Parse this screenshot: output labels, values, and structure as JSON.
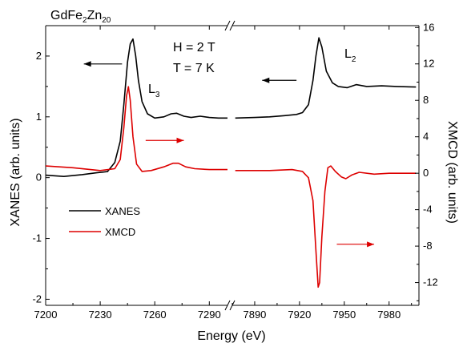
{
  "chart_data": {
    "type": "line",
    "title": "GdFe2Zn20",
    "title_parts": {
      "base1": "GdFe",
      "sub1": "2",
      "base2": "Zn",
      "sub2": "20"
    },
    "xlabel": "Energy (eV)",
    "ylabel_left": "XANES (arb. units)",
    "ylabel_right": "XMCD (arb. units)",
    "x_axis_broken": true,
    "x_segments": [
      {
        "xlim": [
          7200,
          7300
        ],
        "ticks": [
          7200,
          7230,
          7260,
          7290
        ]
      },
      {
        "xlim": [
          7875,
          8000
        ],
        "ticks": [
          7890,
          7920,
          7950,
          7980
        ]
      }
    ],
    "ylim_left": [
      -2.1,
      2.5
    ],
    "yticks_left": [
      -2,
      -1,
      0,
      1,
      2
    ],
    "ylim_right": [
      -14.5,
      16.2
    ],
    "yticks_right": [
      -12,
      -8,
      -4,
      0,
      4,
      8,
      12,
      16
    ],
    "conditions": [
      "H = 2 T",
      "T = 7 K"
    ],
    "edge_labels": [
      {
        "base": "L",
        "sub": "3"
      },
      {
        "base": "L",
        "sub": "2"
      }
    ],
    "legend": {
      "placement": "lower-left"
    },
    "series": [
      {
        "name": "XANES",
        "color": "#000000",
        "axis": "left",
        "segments": [
          [
            [
              7200,
              0.04
            ],
            [
              7210,
              0.02
            ],
            [
              7220,
              0.05
            ],
            [
              7228,
              0.08
            ],
            [
              7234,
              0.1
            ],
            [
              7238,
              0.25
            ],
            [
              7241,
              0.6
            ],
            [
              7243,
              1.2
            ],
            [
              7245,
              1.9
            ],
            [
              7246.5,
              2.2
            ],
            [
              7248,
              2.28
            ],
            [
              7249.5,
              2.0
            ],
            [
              7251,
              1.6
            ],
            [
              7253,
              1.25
            ],
            [
              7256,
              1.05
            ],
            [
              7260,
              0.98
            ],
            [
              7265,
              1.0
            ],
            [
              7269,
              1.05
            ],
            [
              7272,
              1.06
            ],
            [
              7276,
              1.01
            ],
            [
              7280,
              0.99
            ],
            [
              7285,
              1.01
            ],
            [
              7290,
              0.99
            ],
            [
              7295,
              0.98
            ],
            [
              7300,
              0.98
            ]
          ],
          [
            [
              7877,
              0.98
            ],
            [
              7890,
              0.99
            ],
            [
              7900,
              1.0
            ],
            [
              7910,
              1.02
            ],
            [
              7918,
              1.04
            ],
            [
              7922,
              1.07
            ],
            [
              7926,
              1.2
            ],
            [
              7929,
              1.6
            ],
            [
              7931,
              2.0
            ],
            [
              7933,
              2.3
            ],
            [
              7935,
              2.15
            ],
            [
              7938,
              1.75
            ],
            [
              7942,
              1.56
            ],
            [
              7946,
              1.5
            ],
            [
              7952,
              1.48
            ],
            [
              7958,
              1.53
            ],
            [
              7965,
              1.5
            ],
            [
              7975,
              1.51
            ],
            [
              7985,
              1.5
            ],
            [
              7998,
              1.49
            ]
          ]
        ]
      },
      {
        "name": "XMCD",
        "color": "#dd0000",
        "axis": "right",
        "segments": [
          [
            [
              7200,
              0.8
            ],
            [
              7215,
              0.6
            ],
            [
              7230,
              0.3
            ],
            [
              7238,
              0.5
            ],
            [
              7241,
              1.5
            ],
            [
              7243,
              5.0
            ],
            [
              7244.5,
              8.5
            ],
            [
              7245.5,
              9.5
            ],
            [
              7246.5,
              8.0
            ],
            [
              7248,
              4.0
            ],
            [
              7250,
              1.0
            ],
            [
              7253,
              0.2
            ],
            [
              7258,
              0.3
            ],
            [
              7265,
              0.7
            ],
            [
              7270,
              1.1
            ],
            [
              7273,
              1.1
            ],
            [
              7277,
              0.7
            ],
            [
              7282,
              0.5
            ],
            [
              7290,
              0.4
            ],
            [
              7300,
              0.4
            ]
          ],
          [
            [
              7877,
              0.3
            ],
            [
              7900,
              0.3
            ],
            [
              7915,
              0.4
            ],
            [
              7922,
              0.2
            ],
            [
              7926,
              -0.5
            ],
            [
              7929,
              -3.0
            ],
            [
              7931,
              -8.5
            ],
            [
              7932.5,
              -12.5
            ],
            [
              7933.5,
              -12.0
            ],
            [
              7935,
              -7.0
            ],
            [
              7937,
              -2.0
            ],
            [
              7939,
              0.6
            ],
            [
              7941,
              0.8
            ],
            [
              7944,
              0.2
            ],
            [
              7948,
              -0.4
            ],
            [
              7951,
              -0.6
            ],
            [
              7955,
              -0.2
            ],
            [
              7960,
              0.1
            ],
            [
              7970,
              -0.1
            ],
            [
              7980,
              0.0
            ],
            [
              7998,
              0.0
            ]
          ]
        ]
      }
    ],
    "arrows": [
      {
        "color": "#000000",
        "direction": "left",
        "segment": 0,
        "x_from": 7242,
        "x_to": 7221,
        "y": 1.87,
        "axis": "left"
      },
      {
        "color": "#000000",
        "direction": "left",
        "segment": 1,
        "x_from": 7918,
        "x_to": 7895,
        "y": 1.6,
        "axis": "left"
      },
      {
        "color": "#dd0000",
        "direction": "right",
        "segment": 0,
        "x_from": 7255,
        "x_to": 7276,
        "y": 3.6,
        "axis": "right"
      },
      {
        "color": "#dd0000",
        "direction": "right",
        "segment": 1,
        "x_from": 7945,
        "x_to": 7970,
        "y": -7.8,
        "axis": "right"
      }
    ]
  }
}
